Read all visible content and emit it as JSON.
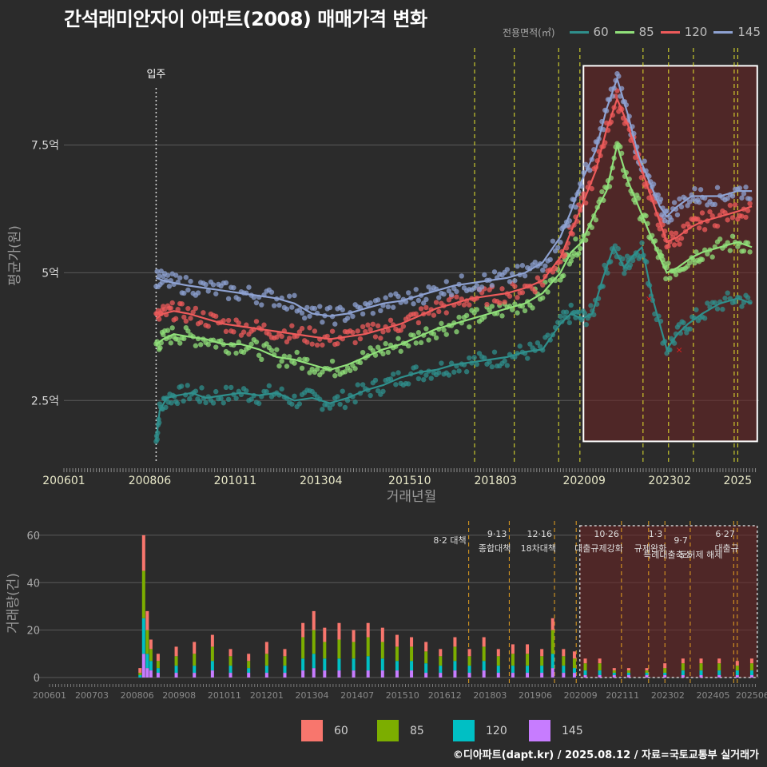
{
  "title": "간석래미안자이 아파트(2008) 매매가격 변화",
  "legend_title": "전용면적(㎡)",
  "source": "©디아파트(dapt.kr) / 2025.08.12 / 자료=국토교통부 실거래가",
  "colors": {
    "background": "#2b2b2b",
    "grid": "#5a5a5a",
    "s60": "#2f8f8c",
    "s85": "#90e07a",
    "s120": "#ee5b5b",
    "s145": "#8ea2d2",
    "bar60": "#f8766d",
    "bar85": "#7cae00",
    "bar120": "#00bfc4",
    "bar145": "#c77cff",
    "policy": "#e6e62e",
    "policy_bottom": "#e5a020",
    "shade": "#6e2424"
  },
  "chart_data": [
    {
      "type": "line",
      "xlabel": "거래년월",
      "ylabel": "평균가(원)",
      "x_tick_labels": [
        "200601",
        "200806",
        "201011",
        "201304",
        "201510",
        "201803",
        "202009",
        "202302",
        "2025"
      ],
      "x_tick_dates": [
        2006.0,
        2008.42,
        2010.83,
        2013.25,
        2015.75,
        2018.17,
        2020.67,
        2023.08,
        2025.0
      ],
      "y_ticks": [
        2.5,
        5,
        7.5
      ],
      "y_tick_labels": [
        "2.5억",
        "5억",
        "7.5억"
      ],
      "xlim": [
        2006.0,
        2025.6
      ],
      "ylim": [
        1.3,
        9.4
      ],
      "vline_label": "입주",
      "vline_date": 2008.6,
      "policy_dates": [
        2017.58,
        2018.7,
        2019.95,
        2020.55,
        2022.33,
        2023.05,
        2023.75,
        2024.9,
        2025.0
      ],
      "highlight_box": {
        "x0": 2020.65,
        "x1": 2025.55,
        "y0": 1.7,
        "y1": 9.05
      },
      "outliers": [
        {
          "x": 2022.5,
          "y": 4.5
        },
        {
          "x": 2023.35,
          "y": 3.5
        }
      ],
      "series": [
        {
          "name": "60",
          "x": [
            2008.6,
            2008.7,
            2008.9,
            2009.2,
            2009.6,
            2010.0,
            2010.5,
            2011.0,
            2011.5,
            2012.0,
            2012.5,
            2013.0,
            2013.5,
            2014.0,
            2014.5,
            2015.0,
            2015.5,
            2016.0,
            2016.5,
            2017.0,
            2017.5,
            2018.0,
            2018.5,
            2019.0,
            2019.5,
            2020.0,
            2020.3,
            2020.6,
            2020.9,
            2021.2,
            2021.5,
            2021.8,
            2022.0,
            2022.3,
            2022.6,
            2023.0,
            2023.3,
            2023.6,
            2024.0,
            2024.5,
            2025.0,
            2025.4
          ],
          "y": [
            1.7,
            2.3,
            2.55,
            2.6,
            2.65,
            2.55,
            2.6,
            2.65,
            2.6,
            2.65,
            2.5,
            2.55,
            2.45,
            2.55,
            2.7,
            2.8,
            2.95,
            3.05,
            3.1,
            3.2,
            3.25,
            3.3,
            3.35,
            3.45,
            3.5,
            4.0,
            4.2,
            4.1,
            4.2,
            4.9,
            5.5,
            5.1,
            5.3,
            5.5,
            4.5,
            3.5,
            3.8,
            4.0,
            4.2,
            4.4,
            4.5,
            4.4
          ]
        },
        {
          "name": "85",
          "x": [
            2008.6,
            2008.8,
            2009.1,
            2009.5,
            2010.0,
            2010.5,
            2011.0,
            2011.5,
            2012.0,
            2012.5,
            2013.0,
            2013.5,
            2014.0,
            2014.5,
            2015.0,
            2015.5,
            2016.0,
            2016.5,
            2017.0,
            2017.5,
            2018.0,
            2018.5,
            2019.0,
            2019.5,
            2020.0,
            2020.3,
            2020.6,
            2021.0,
            2021.3,
            2021.6,
            2021.9,
            2022.2,
            2022.5,
            2022.8,
            2023.0,
            2023.3,
            2023.7,
            2024.0,
            2024.5,
            2025.0,
            2025.4
          ],
          "y": [
            3.6,
            3.7,
            3.8,
            3.75,
            3.7,
            3.6,
            3.6,
            3.5,
            3.35,
            3.3,
            3.2,
            3.1,
            3.2,
            3.35,
            3.5,
            3.6,
            3.75,
            3.9,
            4.0,
            4.1,
            4.2,
            4.3,
            4.4,
            4.6,
            5.0,
            5.4,
            5.6,
            6.2,
            6.6,
            7.5,
            6.8,
            6.3,
            5.8,
            5.3,
            5.0,
            5.1,
            5.3,
            5.4,
            5.5,
            5.6,
            5.5
          ]
        },
        {
          "name": "120",
          "x": [
            2008.6,
            2008.8,
            2009.1,
            2009.5,
            2010.0,
            2010.5,
            2011.0,
            2011.5,
            2012.0,
            2012.5,
            2013.0,
            2013.5,
            2014.0,
            2014.5,
            2015.0,
            2015.5,
            2016.0,
            2016.5,
            2017.0,
            2017.5,
            2018.0,
            2018.5,
            2019.0,
            2019.5,
            2020.0,
            2020.3,
            2020.6,
            2021.0,
            2021.3,
            2021.6,
            2021.9,
            2022.2,
            2022.5,
            2022.8,
            2023.0,
            2023.3,
            2023.7,
            2024.0,
            2024.5,
            2025.0,
            2025.4
          ],
          "y": [
            4.1,
            4.2,
            4.25,
            4.2,
            4.1,
            4.0,
            3.95,
            3.9,
            3.85,
            3.8,
            3.75,
            3.7,
            3.75,
            3.8,
            3.9,
            4.0,
            4.15,
            4.3,
            4.4,
            4.5,
            4.55,
            4.6,
            4.7,
            4.85,
            5.3,
            5.8,
            6.3,
            7.0,
            7.8,
            8.4,
            7.9,
            7.2,
            6.6,
            6.0,
            5.6,
            5.7,
            5.9,
            6.0,
            6.1,
            6.2,
            6.3
          ]
        },
        {
          "name": "145",
          "x": [
            2008.6,
            2008.8,
            2009.1,
            2009.5,
            2010.0,
            2010.5,
            2011.0,
            2011.5,
            2012.0,
            2012.5,
            2013.0,
            2013.5,
            2014.0,
            2014.5,
            2015.0,
            2015.5,
            2016.0,
            2016.5,
            2017.0,
            2017.5,
            2018.0,
            2018.5,
            2019.0,
            2019.5,
            2020.0,
            2020.3,
            2020.6,
            2021.0,
            2021.3,
            2021.6,
            2021.9,
            2022.2,
            2022.5,
            2022.8,
            2023.0,
            2023.3,
            2023.7,
            2024.0,
            2024.5,
            2025.0,
            2025.4
          ],
          "y": [
            4.9,
            4.85,
            4.8,
            4.75,
            4.7,
            4.65,
            4.6,
            4.55,
            4.5,
            4.4,
            4.2,
            4.15,
            4.2,
            4.3,
            4.4,
            4.45,
            4.55,
            4.65,
            4.75,
            4.8,
            4.85,
            4.9,
            5.0,
            5.2,
            5.7,
            6.2,
            6.8,
            7.4,
            8.2,
            8.8,
            8.1,
            7.3,
            6.8,
            6.3,
            6.1,
            6.3,
            6.5,
            6.5,
            6.5,
            6.6,
            6.6
          ]
        }
      ]
    },
    {
      "type": "bar",
      "ylabel": "거래량(건)",
      "stacked": true,
      "y_ticks": [
        0,
        20,
        40,
        60
      ],
      "ylim": [
        0,
        64
      ],
      "x_tick_labels": [
        "200601",
        "200703",
        "200806",
        "200908",
        "201011",
        "201201",
        "201304",
        "201407",
        "201510",
        "201612",
        "201803",
        "201906",
        "202009",
        "202111",
        "202302",
        "202405",
        "202506"
      ],
      "x_tick_dates": [
        2006.0,
        2007.17,
        2008.42,
        2009.58,
        2010.83,
        2012.0,
        2013.25,
        2014.5,
        2015.75,
        2016.92,
        2018.17,
        2019.42,
        2020.67,
        2021.83,
        2023.08,
        2024.33,
        2025.42
      ],
      "xlim": [
        2006.0,
        2025.6
      ],
      "policy_dates": [
        2017.58,
        2018.7,
        2019.95,
        2020.55,
        2021.8,
        2022.55,
        2023.0,
        2023.7,
        2024.9,
        2025.0
      ],
      "highlight_box": {
        "x0": 2020.65,
        "x1": 2025.55
      },
      "annotations": [
        {
          "date_label": "8·2 대책",
          "name": "",
          "x": 2017.58,
          "row": 1
        },
        {
          "date_label": "9·13",
          "name": "종합대책",
          "x": 2018.7,
          "row": 0
        },
        {
          "date_label": "12·16",
          "name": "18차대책",
          "x": 2019.95,
          "row": 0
        },
        {
          "date_label": "10·26",
          "name": "대출규제강화",
          "x": 2021.8,
          "row": 0
        },
        {
          "date_label": "1·3",
          "name": "규제완화",
          "x": 2023.0,
          "row": 0
        },
        {
          "date_label": "9·7",
          "name": "특례대출축소",
          "x": 2023.7,
          "row": 1
        },
        {
          "date_label": "",
          "name": "토허제 해제",
          "x": 2024.55,
          "row": 1
        },
        {
          "date_label": "6·27",
          "name": "대출규",
          "x": 2025.0,
          "row": 0
        }
      ],
      "categories": [
        "2008.5",
        "2008.6",
        "2008.7",
        "2008.8",
        "2009.0",
        "2009.5",
        "2010.0",
        "2010.5",
        "2011.0",
        "2011.5",
        "2012.0",
        "2012.5",
        "2013.0",
        "2013.3",
        "2013.6",
        "2014.0",
        "2014.4",
        "2014.8",
        "2015.2",
        "2015.6",
        "2016.0",
        "2016.4",
        "2016.8",
        "2017.2",
        "2017.6",
        "2018.0",
        "2018.4",
        "2018.8",
        "2019.2",
        "2019.6",
        "2019.9",
        "2020.2",
        "2020.5",
        "2020.8",
        "2021.2",
        "2021.6",
        "2022.0",
        "2022.5",
        "2023.0",
        "2023.5",
        "2024.0",
        "2024.5",
        "2025.0",
        "2025.4"
      ],
      "series": [
        {
          "name": "60",
          "values": [
            2,
            15,
            8,
            4,
            3,
            4,
            5,
            5,
            3,
            3,
            5,
            3,
            6,
            8,
            6,
            7,
            5,
            6,
            6,
            5,
            4,
            4,
            3,
            4,
            3,
            4,
            3,
            4,
            4,
            3,
            5,
            3,
            3,
            2,
            2,
            1,
            1,
            1,
            2,
            2,
            2,
            2,
            2,
            2
          ]
        },
        {
          "name": "85",
          "values": [
            1,
            20,
            10,
            5,
            3,
            4,
            5,
            6,
            4,
            3,
            5,
            4,
            9,
            10,
            7,
            8,
            7,
            8,
            7,
            6,
            6,
            5,
            4,
            6,
            4,
            6,
            4,
            5,
            5,
            4,
            10,
            4,
            4,
            3,
            3,
            1,
            1,
            1,
            2,
            3,
            3,
            3,
            2,
            3
          ]
        },
        {
          "name": "120",
          "values": [
            1,
            15,
            6,
            4,
            2,
            3,
            3,
            4,
            3,
            2,
            3,
            3,
            5,
            6,
            5,
            5,
            5,
            6,
            5,
            4,
            4,
            4,
            3,
            4,
            3,
            4,
            3,
            3,
            3,
            3,
            6,
            3,
            2,
            2,
            2,
            1,
            1,
            1,
            1,
            2,
            2,
            2,
            2,
            2
          ]
        },
        {
          "name": "145",
          "values": [
            0,
            10,
            4,
            3,
            2,
            2,
            2,
            3,
            2,
            2,
            2,
            2,
            3,
            4,
            3,
            3,
            3,
            3,
            3,
            3,
            3,
            2,
            2,
            3,
            2,
            3,
            2,
            2,
            2,
            2,
            4,
            2,
            2,
            1,
            1,
            1,
            1,
            1,
            1,
            1,
            1,
            1,
            1,
            1
          ]
        }
      ]
    }
  ]
}
